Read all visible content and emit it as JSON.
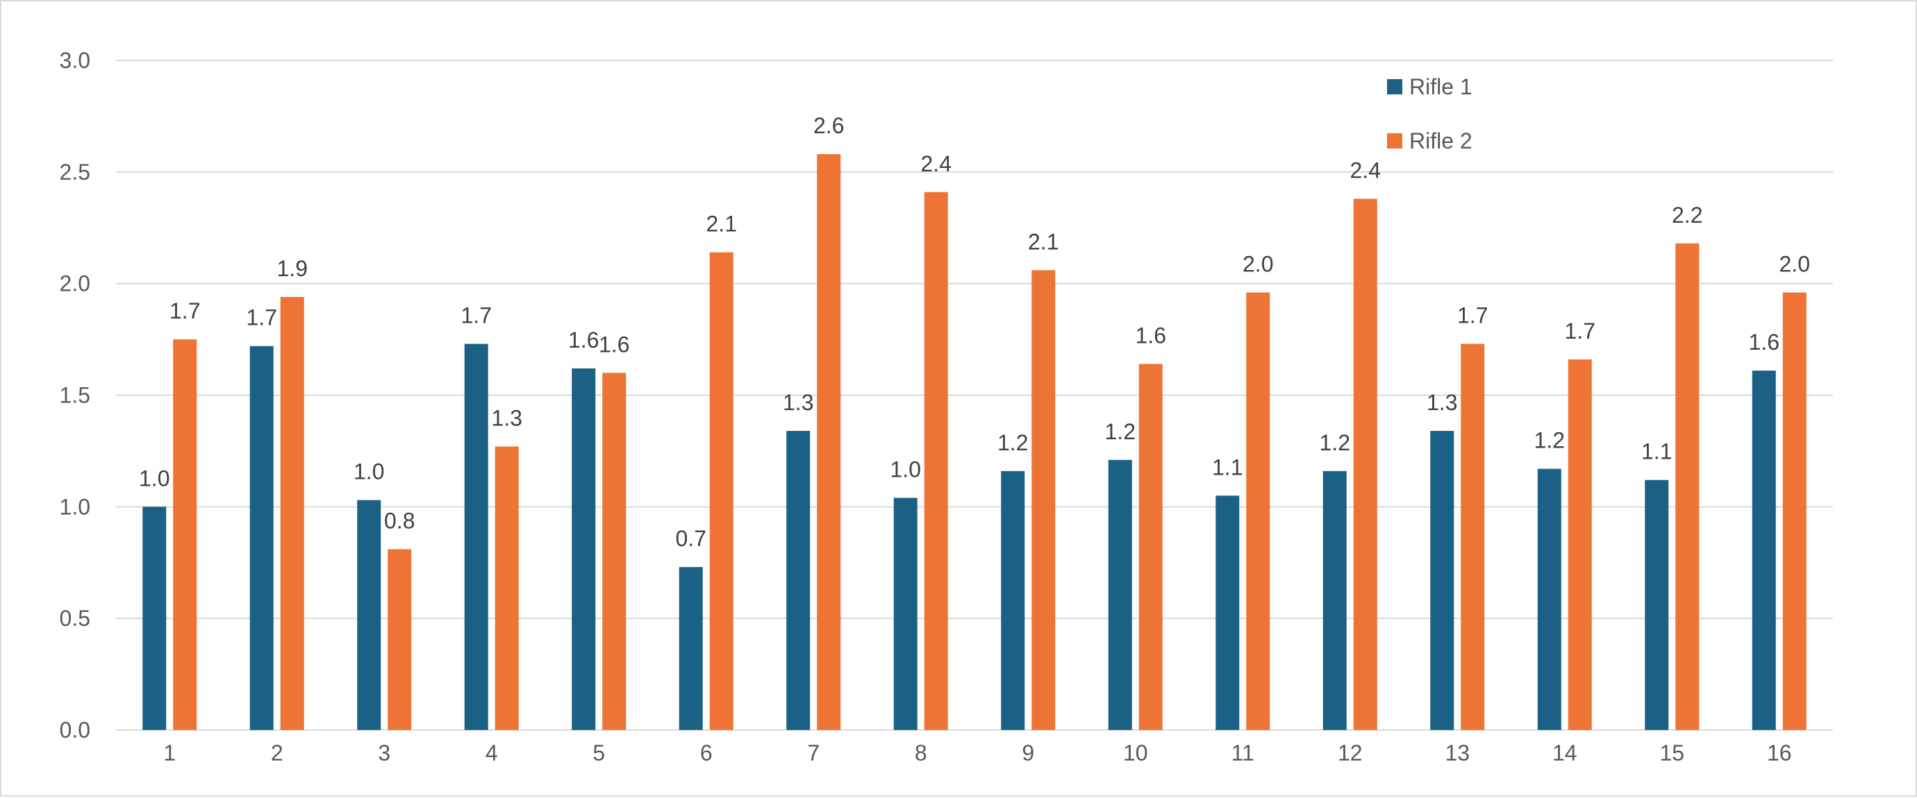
{
  "chart_data": {
    "type": "bar",
    "title": "",
    "xlabel": "",
    "ylabel": "",
    "categories": [
      "1",
      "2",
      "3",
      "4",
      "5",
      "6",
      "7",
      "8",
      "9",
      "10",
      "11",
      "12",
      "13",
      "14",
      "15",
      "16"
    ],
    "series": [
      {
        "name": "Rifle 1",
        "color": "#1a6185",
        "values": [
          1.0,
          1.72,
          1.03,
          1.73,
          1.62,
          0.73,
          1.34,
          1.04,
          1.16,
          1.21,
          1.05,
          1.16,
          1.34,
          1.17,
          1.12,
          1.61
        ],
        "labels": [
          "1.0",
          "1.7",
          "1.0",
          "1.7",
          "1.6",
          "0.7",
          "1.3",
          "1.0",
          "1.2",
          "1.2",
          "1.1",
          "1.2",
          "1.3",
          "1.2",
          "1.1",
          "1.6"
        ]
      },
      {
        "name": "Rifle 2",
        "color": "#ed7434",
        "values": [
          1.75,
          1.94,
          0.81,
          1.27,
          1.6,
          2.14,
          2.58,
          2.41,
          2.06,
          1.64,
          1.96,
          2.38,
          1.73,
          1.66,
          2.18,
          1.96
        ],
        "labels": [
          "1.7",
          "1.9",
          "0.8",
          "1.3",
          "1.6",
          "2.1",
          "2.6",
          "2.4",
          "2.1",
          "1.6",
          "2.0",
          "2.4",
          "1.7",
          "1.7",
          "2.2",
          "2.0"
        ]
      }
    ],
    "ylim": [
      0,
      3.0
    ],
    "yticks": [
      "0.0",
      "0.5",
      "1.0",
      "1.5",
      "2.0",
      "2.5",
      "3.0"
    ],
    "grid": true,
    "legend_position": "top-right"
  }
}
